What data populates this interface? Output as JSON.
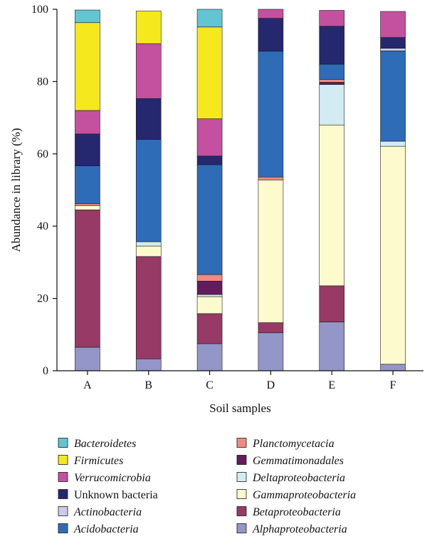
{
  "chart_data": {
    "type": "bar",
    "stacked": true,
    "categories": [
      "A",
      "B",
      "C",
      "D",
      "E",
      "F"
    ],
    "xlabel": "Soil samples",
    "ylabel": "Abundance in library (%)",
    "ylim": [
      0,
      100
    ],
    "yticks": [
      0,
      20,
      40,
      60,
      80,
      100
    ],
    "grid": false,
    "legend_position": "bottom",
    "series": [
      {
        "name": "Alphaproteobacteria",
        "italic": true,
        "color": "#9496c8",
        "values": [
          6.5,
          3.3,
          7.5,
          10.5,
          13.5,
          1.8
        ]
      },
      {
        "name": "Betaproteobacteria",
        "italic": true,
        "color": "#973a65",
        "values": [
          38.0,
          28.3,
          8.3,
          2.8,
          10.0,
          0.0
        ]
      },
      {
        "name": "Gammaproteobacteria",
        "italic": true,
        "color": "#fdfbce",
        "values": [
          1.2,
          2.9,
          4.7,
          39.5,
          44.5,
          60.3
        ]
      },
      {
        "name": "Deltaproteobacteria",
        "italic": true,
        "color": "#d3ecf3",
        "values": [
          0.0,
          1.2,
          0.6,
          0.0,
          11.2,
          1.4
        ]
      },
      {
        "name": "Gemmatimonadales",
        "italic": true,
        "color": "#621c5d",
        "values": [
          0.0,
          0.0,
          3.7,
          0.0,
          0.6,
          0.0
        ]
      },
      {
        "name": "Planctomycetacia",
        "italic": true,
        "color": "#f08a84",
        "values": [
          0.5,
          0.0,
          1.8,
          0.8,
          0.8,
          0.0
        ]
      },
      {
        "name": "Acidobacteria",
        "italic": true,
        "color": "#2e6cb8",
        "values": [
          10.5,
          28.3,
          30.4,
          34.8,
          4.2,
          25.0
        ]
      },
      {
        "name": "Actinobacteria",
        "italic": true,
        "color": "#cfcbe7",
        "values": [
          0.0,
          0.0,
          0.0,
          0.0,
          0.0,
          0.7
        ]
      },
      {
        "name": "Unknown bacteria",
        "italic": false,
        "color": "#25286e",
        "values": [
          8.8,
          11.3,
          2.4,
          9.1,
          10.5,
          3.0
        ]
      },
      {
        "name": "Verrucomicrobia",
        "italic": true,
        "color": "#c4519f",
        "values": [
          6.5,
          15.2,
          10.3,
          2.5,
          4.4,
          7.2
        ]
      },
      {
        "name": "Firmicutes",
        "italic": true,
        "color": "#f5e91d",
        "values": [
          24.3,
          9.0,
          25.4,
          0.0,
          0.0,
          0.0
        ]
      },
      {
        "name": "Bacteroidetes",
        "italic": true,
        "color": "#62c5d3",
        "values": [
          3.5,
          0.0,
          4.9,
          0.0,
          0.0,
          0.0
        ]
      }
    ],
    "legend_columns": [
      [
        "Bacteroidetes",
        "Firmicutes",
        "Verrucomicrobia",
        "Unknown bacteria",
        "Actinobacteria",
        "Acidobacteria"
      ],
      [
        "Planctomycetacia",
        "Gemmatimonadales",
        "Deltaproteobacteria",
        "Gammaproteobacteria",
        "Betaproteobacteria",
        "Alphaproteobacteria"
      ]
    ]
  }
}
